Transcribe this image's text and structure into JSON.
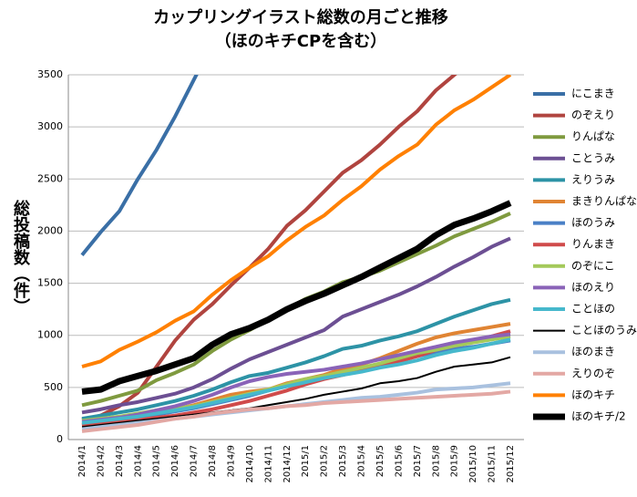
{
  "chart_data": {
    "type": "line",
    "title": "カップリングイラスト総数の月ごと推移",
    "subtitle": "（ほのキチCPを含む）",
    "y_label": "総投稿数（件）",
    "categories": [
      "2014/1",
      "2014/2",
      "2014/3",
      "2014/4",
      "2014/5",
      "2014/6",
      "2014/7",
      "2014/8",
      "2014/9",
      "2014/10",
      "2014/11",
      "2014/12",
      "2015/1",
      "2015/2",
      "2015/3",
      "2015/4",
      "2015/5",
      "2015/6",
      "2015/7",
      "2015/8",
      "2015/9",
      "2015/10",
      "2015/11",
      "2015/12"
    ],
    "ylim": [
      0,
      3500
    ],
    "yticks": [
      0,
      500,
      1000,
      1500,
      2000,
      2500,
      3000,
      3500
    ],
    "grid": true,
    "legend": "right",
    "series": [
      {
        "name": "にこまき",
        "color": "#3a6fa6",
        "width": 4,
        "values": [
          1770,
          1990,
          2190,
          2500,
          2780,
          3100,
          3450,
          3800,
          null,
          null,
          null,
          null,
          null,
          null,
          null,
          null,
          null,
          null,
          null,
          null,
          null,
          null,
          null,
          null
        ]
      },
      {
        "name": "のぞえり",
        "color": "#b0443f",
        "width": 4,
        "values": [
          190,
          230,
          320,
          450,
          700,
          950,
          1150,
          1300,
          1480,
          1650,
          1830,
          2050,
          2200,
          2380,
          2560,
          2680,
          2830,
          3000,
          3150,
          3350,
          3500,
          3650,
          null,
          null
        ]
      },
      {
        "name": "りんぱな",
        "color": "#7f9a3f",
        "width": 4,
        "values": [
          330,
          370,
          420,
          470,
          570,
          640,
          720,
          850,
          960,
          1050,
          1150,
          1250,
          1350,
          1420,
          1510,
          1560,
          1620,
          1700,
          1780,
          1860,
          1950,
          2020,
          2090,
          2170
        ]
      },
      {
        "name": "ことうみ",
        "color": "#6c4f93",
        "width": 4,
        "values": [
          260,
          290,
          330,
          360,
          400,
          440,
          500,
          580,
          680,
          770,
          840,
          910,
          980,
          1050,
          1180,
          1250,
          1320,
          1390,
          1470,
          1560,
          1660,
          1750,
          1850,
          1930
        ]
      },
      {
        "name": "えりうみ",
        "color": "#2d93a6",
        "width": 4,
        "values": [
          200,
          230,
          260,
          290,
          330,
          370,
          420,
          480,
          550,
          610,
          640,
          690,
          740,
          800,
          870,
          900,
          950,
          990,
          1040,
          1110,
          1180,
          1240,
          1300,
          1340
        ]
      },
      {
        "name": "まきりんぱな",
        "color": "#e08433",
        "width": 4,
        "values": [
          140,
          170,
          200,
          230,
          260,
          290,
          330,
          380,
          430,
          460,
          480,
          540,
          580,
          620,
          680,
          720,
          780,
          850,
          920,
          980,
          1020,
          1050,
          1080,
          1110
        ]
      },
      {
        "name": "ほのうみ",
        "color": "#4a80c6",
        "width": 4,
        "values": [
          150,
          170,
          190,
          210,
          240,
          270,
          300,
          340,
          380,
          420,
          470,
          520,
          560,
          600,
          640,
          680,
          720,
          760,
          800,
          840,
          870,
          890,
          920,
          950
        ]
      },
      {
        "name": "りんまき",
        "color": "#d04b4b",
        "width": 4,
        "values": [
          130,
          150,
          170,
          190,
          210,
          230,
          260,
          290,
          330,
          370,
          420,
          470,
          530,
          580,
          620,
          660,
          700,
          750,
          800,
          860,
          900,
          940,
          990,
          1040
        ]
      },
      {
        "name": "のぞにこ",
        "color": "#a4c95a",
        "width": 4,
        "values": [
          180,
          200,
          220,
          250,
          280,
          300,
          320,
          360,
          400,
          440,
          480,
          530,
          580,
          610,
          650,
          690,
          730,
          780,
          830,
          860,
          900,
          930,
          960,
          990
        ]
      },
      {
        "name": "ほのえり",
        "color": "#8a63b8",
        "width": 4,
        "values": [
          170,
          190,
          210,
          240,
          280,
          320,
          370,
          430,
          500,
          560,
          600,
          630,
          650,
          670,
          700,
          730,
          770,
          810,
          850,
          890,
          930,
          960,
          990,
          1010
        ]
      },
      {
        "name": "ことほの",
        "color": "#46b8cc",
        "width": 4,
        "values": [
          160,
          180,
          200,
          220,
          250,
          280,
          310,
          350,
          390,
          430,
          470,
          510,
          550,
          590,
          620,
          650,
          690,
          720,
          760,
          810,
          850,
          880,
          920,
          960
        ]
      },
      {
        "name": "ことほのうみ",
        "color": "#000000",
        "width": 2,
        "values": [
          120,
          140,
          160,
          180,
          200,
          220,
          240,
          260,
          280,
          300,
          330,
          360,
          390,
          430,
          460,
          490,
          540,
          560,
          590,
          650,
          700,
          720,
          740,
          790
        ]
      },
      {
        "name": "ほのまき",
        "color": "#a9c1df",
        "width": 4,
        "values": [
          100,
          120,
          140,
          160,
          180,
          200,
          220,
          240,
          260,
          280,
          300,
          320,
          340,
          360,
          380,
          400,
          410,
          430,
          450,
          480,
          490,
          500,
          520,
          540
        ]
      },
      {
        "name": "えりのぞ",
        "color": "#e3a8a4",
        "width": 4,
        "values": [
          80,
          100,
          120,
          140,
          170,
          200,
          220,
          250,
          270,
          290,
          300,
          320,
          330,
          350,
          360,
          370,
          380,
          390,
          400,
          410,
          420,
          430,
          440,
          460
        ]
      },
      {
        "name": "ほのキチ",
        "color": "#ff8000",
        "width": 4,
        "values": [
          700,
          750,
          860,
          940,
          1030,
          1140,
          1230,
          1390,
          1530,
          1650,
          1760,
          1910,
          2040,
          2150,
          2300,
          2430,
          2590,
          2720,
          2830,
          3020,
          3160,
          3260,
          3380,
          3500
        ]
      },
      {
        "name": "ほのキチ/2",
        "color": "#000000",
        "width": 7,
        "values": [
          460,
          480,
          560,
          610,
          660,
          720,
          780,
          910,
          1010,
          1070,
          1150,
          1250,
          1330,
          1400,
          1480,
          1560,
          1650,
          1740,
          1830,
          1960,
          2060,
          2120,
          2190,
          2270
        ]
      }
    ]
  }
}
